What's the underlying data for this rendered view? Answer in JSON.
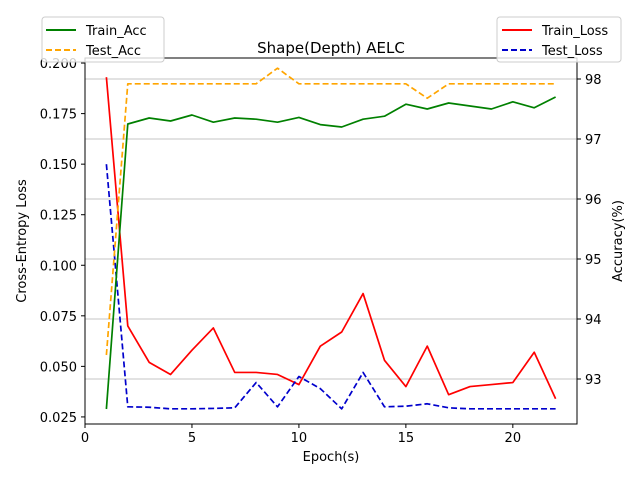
{
  "chart_data": {
    "type": "line",
    "title": "Shape(Depth) AELC",
    "xlabel": "Epoch(s)",
    "ylabel_left": "Cross-Entropy Loss",
    "ylabel_right": "Accuracy(%)",
    "xlim": [
      0,
      23
    ],
    "ylim_left": [
      0.0215,
      0.2025
    ],
    "ylim_right": [
      92.25,
      98.35
    ],
    "xticks": [
      0,
      5,
      10,
      15,
      20
    ],
    "yticks_left": [
      0.025,
      0.05,
      0.075,
      0.1,
      0.125,
      0.15,
      0.175,
      0.2
    ],
    "yticks_right": [
      93,
      94,
      95,
      96,
      97,
      98
    ],
    "grid": "horizontal, right axis",
    "legend_left": "top-left",
    "legend_right": "top-right",
    "x": [
      1,
      2,
      3,
      4,
      5,
      6,
      7,
      8,
      9,
      10,
      11,
      12,
      13,
      14,
      15,
      16,
      17,
      18,
      19,
      20,
      21,
      22
    ],
    "series": [
      {
        "name": "Train_Loss",
        "axis": "left",
        "color": "#ff0000",
        "dash": "solid",
        "values": [
          0.193,
          0.07,
          0.052,
          0.046,
          0.058,
          0.069,
          0.047,
          0.047,
          0.046,
          0.041,
          0.06,
          0.067,
          0.086,
          0.053,
          0.04,
          0.06,
          0.036,
          0.04,
          0.041,
          0.042,
          0.057,
          0.034
        ]
      },
      {
        "name": "Test_Loss",
        "axis": "left",
        "color": "#0000cc",
        "dash": "dashed",
        "values": [
          0.15,
          0.03,
          0.0298,
          0.029,
          0.029,
          0.0292,
          0.0295,
          0.042,
          0.03,
          0.045,
          0.039,
          0.029,
          0.047,
          0.03,
          0.0303,
          0.0315,
          0.0295,
          0.029,
          0.029,
          0.029,
          0.029,
          0.029
        ]
      },
      {
        "name": "Train_Acc",
        "axis": "right",
        "color": "#008000",
        "dash": "solid",
        "values": [
          92.5,
          97.25,
          97.35,
          97.3,
          97.4,
          97.28,
          97.35,
          97.33,
          97.28,
          97.36,
          97.24,
          97.2,
          97.33,
          97.38,
          97.58,
          97.5,
          97.6,
          97.55,
          97.5,
          97.62,
          97.52,
          97.7
        ]
      },
      {
        "name": "Test_Acc",
        "axis": "right",
        "color": "#ffa500",
        "dash": "dashed",
        "values": [
          93.4,
          97.92,
          97.92,
          97.92,
          97.92,
          97.92,
          97.92,
          97.92,
          98.18,
          97.92,
          97.92,
          97.92,
          97.92,
          97.92,
          97.92,
          97.68,
          97.92,
          97.92,
          97.92,
          97.92,
          97.92,
          97.92
        ]
      }
    ]
  }
}
